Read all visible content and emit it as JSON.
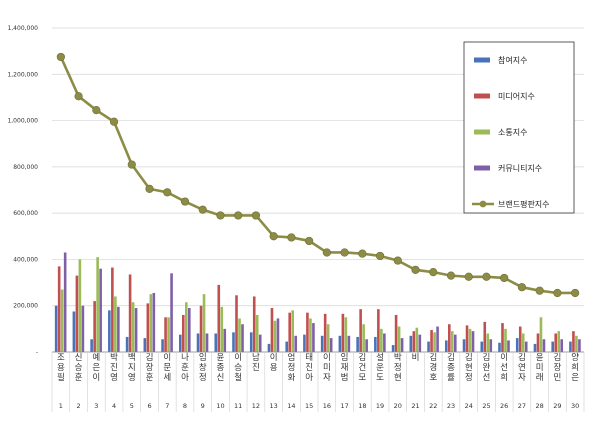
{
  "chart_data": {
    "type": "bar",
    "categories": [
      "조용필",
      "신승훈",
      "예은이",
      "박진영",
      "백지영",
      "김장훈",
      "이문세",
      "나훈아",
      "임창정",
      "윤종신",
      "이승철",
      "남진",
      "이용",
      "엄정화",
      "태진아",
      "이미자",
      "임재범",
      "김건모",
      "설운도",
      "박정현",
      "비",
      "김경호",
      "김종률",
      "김현정",
      "김완선",
      "이선희",
      "김연자",
      "윤미래",
      "김장민",
      "양희은"
    ],
    "index_labels": [
      "1",
      "2",
      "3",
      "4",
      "5",
      "6",
      "7",
      "8",
      "9",
      "10",
      "11",
      "12",
      "13",
      "14",
      "15",
      "16",
      "17",
      "18",
      "19",
      "20",
      "21",
      "22",
      "23",
      "24",
      "25",
      "26",
      "27",
      "28",
      "29",
      "30"
    ],
    "ylim": [
      0,
      1400000
    ],
    "yticks": [
      "-",
      "200,000",
      "400,000",
      "600,000",
      "800,000",
      "1,000,000",
      "1,200,000",
      "1,400,000"
    ],
    "ytick_values": [
      0,
      200000,
      400000,
      600000,
      800000,
      1000000,
      1200000,
      1400000
    ],
    "grid": true,
    "legend_position": "top-right",
    "series": [
      {
        "name": "참여지수",
        "kind": "bar",
        "color": "#4a72b8",
        "values": [
          200000,
          175000,
          55000,
          180000,
          65000,
          60000,
          55000,
          75000,
          80000,
          80000,
          85000,
          85000,
          35000,
          45000,
          75000,
          70000,
          70000,
          65000,
          65000,
          30000,
          70000,
          45000,
          50000,
          55000,
          45000,
          40000,
          60000,
          35000,
          45000,
          45000
        ]
      },
      {
        "name": "미디어지수",
        "kind": "bar",
        "color": "#c0504d",
        "values": [
          370000,
          330000,
          220000,
          365000,
          335000,
          210000,
          150000,
          160000,
          200000,
          290000,
          245000,
          240000,
          190000,
          170000,
          170000,
          165000,
          165000,
          185000,
          185000,
          160000,
          90000,
          95000,
          120000,
          115000,
          130000,
          125000,
          110000,
          80000,
          80000,
          90000
        ]
      },
      {
        "name": "소통지수",
        "kind": "bar",
        "color": "#9bbb59",
        "values": [
          270000,
          400000,
          410000,
          240000,
          215000,
          250000,
          150000,
          215000,
          250000,
          195000,
          145000,
          160000,
          135000,
          180000,
          145000,
          120000,
          150000,
          120000,
          100000,
          110000,
          105000,
          85000,
          90000,
          100000,
          80000,
          100000,
          80000,
          150000,
          90000,
          70000
        ]
      },
      {
        "name": "커뮤니티지수",
        "kind": "bar",
        "color": "#7f5fa6",
        "values": [
          430000,
          200000,
          360000,
          195000,
          190000,
          255000,
          340000,
          190000,
          80000,
          100000,
          120000,
          75000,
          145000,
          70000,
          125000,
          60000,
          70000,
          55000,
          80000,
          60000,
          75000,
          110000,
          75000,
          90000,
          55000,
          50000,
          45000,
          55000,
          55000,
          55000
        ]
      },
      {
        "name": "브랜드평판지수",
        "kind": "line",
        "color": "#8c8c46",
        "values": [
          1275000,
          1105000,
          1045000,
          995000,
          810000,
          705000,
          690000,
          650000,
          615000,
          590000,
          590000,
          590000,
          500000,
          495000,
          480000,
          430000,
          430000,
          425000,
          415000,
          395000,
          355000,
          345000,
          330000,
          325000,
          325000,
          320000,
          280000,
          265000,
          255000,
          255000
        ]
      }
    ]
  }
}
